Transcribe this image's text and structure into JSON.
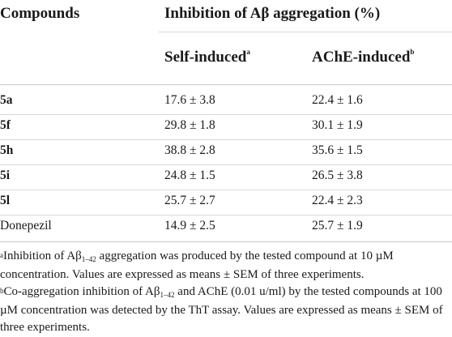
{
  "table": {
    "header": {
      "col1": "Compounds",
      "group": "Inhibition of Aβ aggregation (%)",
      "col2": "Self-induced",
      "col2_sup": "a",
      "col3": "AChE-induced",
      "col3_sup": "b"
    },
    "rows": [
      {
        "compound": "5a",
        "self": "17.6 ± 3.8",
        "ache": "22.4 ± 1.6",
        "bold": true
      },
      {
        "compound": "5f",
        "self": "29.8 ± 1.8",
        "ache": "30.1 ± 1.9",
        "bold": true
      },
      {
        "compound": "5h",
        "self": "38.8 ± 2.8",
        "ache": "35.6 ± 1.5",
        "bold": true
      },
      {
        "compound": "5i",
        "self": "24.8 ± 1.5",
        "ache": "26.5 ± 3.8",
        "bold": true
      },
      {
        "compound": "5l",
        "self": "25.7 ± 2.7",
        "ache": "22.4 ± 2.3",
        "bold": true
      },
      {
        "compound": "Donepezil",
        "self": "14.9 ± 2.5",
        "ache": "25.7 ± 1.9",
        "bold": false
      }
    ]
  },
  "footnotes": {
    "a": {
      "mark": "a",
      "pre": "Inhibition of Aβ",
      "sub": "1–42",
      "post": " aggregation was produced by the tested compound at 10 µM concentration. Values are expressed as means ± SEM of three experiments."
    },
    "b": {
      "mark": "b",
      "pre": "Co-aggregation inhibition of Aβ",
      "sub": "1–42",
      "post": " and AChE (0.01 u/ml) by the tested compounds at 100 µM concentration was detected by the ThT assay. Values are expressed as means ± SEM of three experiments."
    }
  }
}
